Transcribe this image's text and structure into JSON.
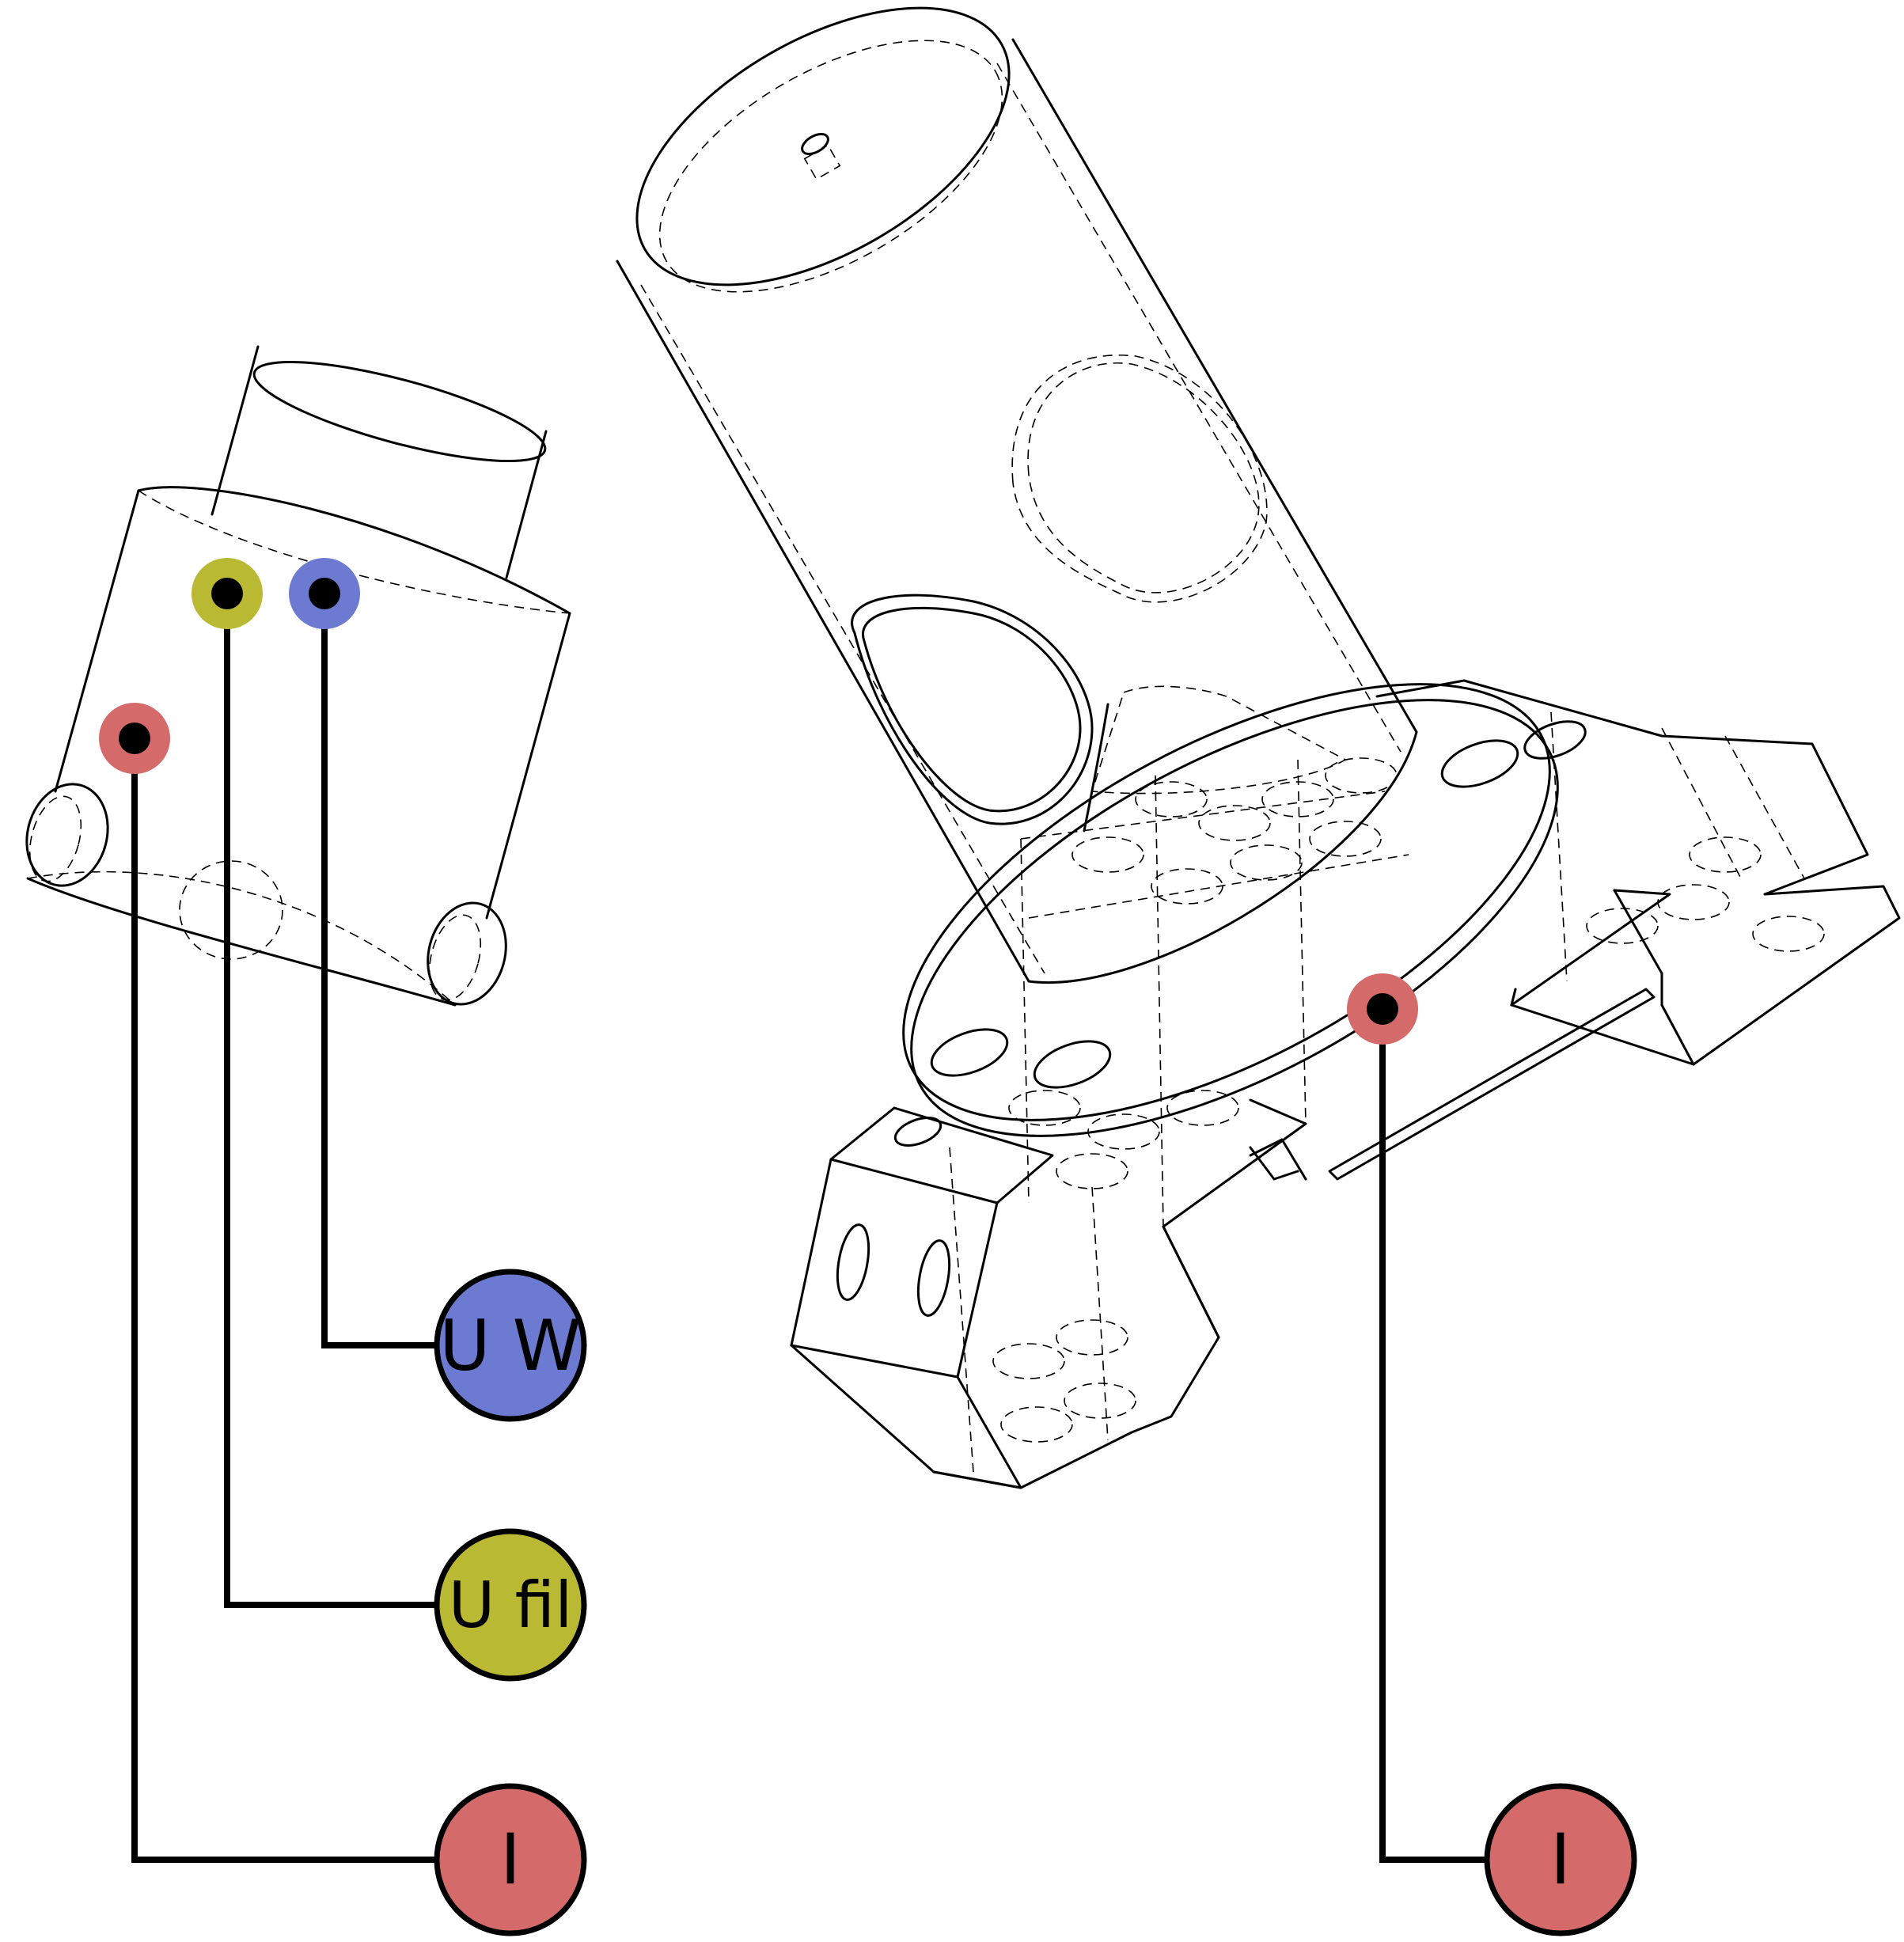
{
  "colors": {
    "red": "#d46a6a",
    "yellow": "#b9b933",
    "blue": "#6d7ad1",
    "line": "#000000",
    "background": "#ffffff"
  },
  "labels": {
    "left_blue": "U W",
    "left_yellow": "U fil",
    "left_red": "I",
    "right_red": "I"
  }
}
